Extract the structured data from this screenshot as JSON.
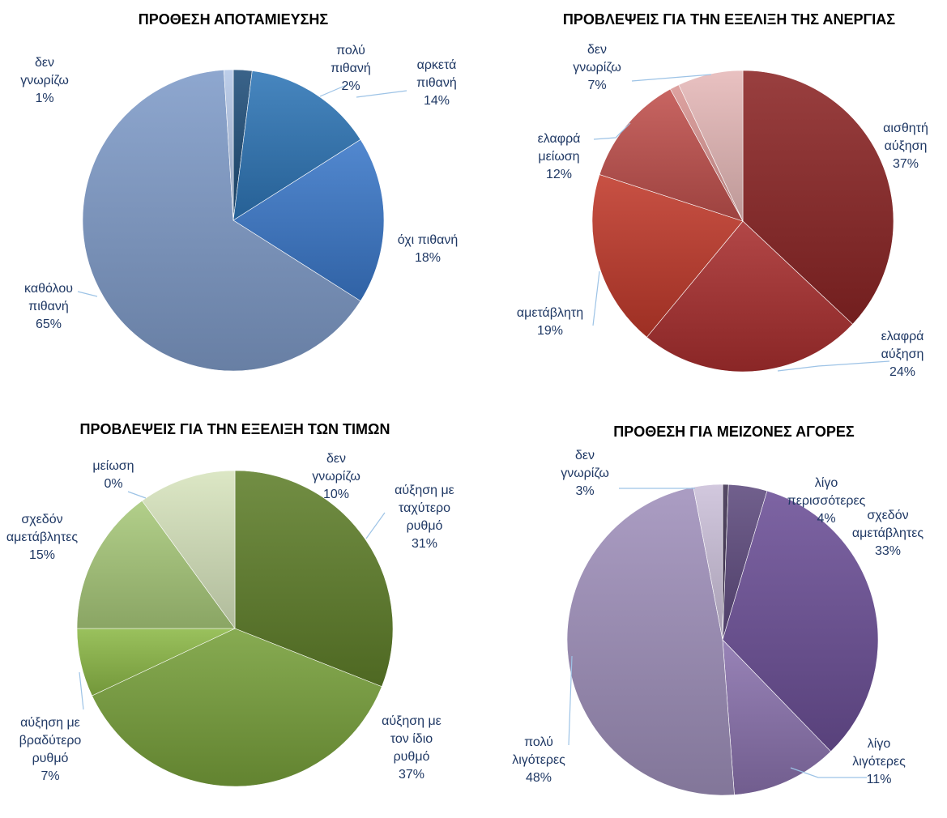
{
  "chart_data": [
    {
      "type": "pie",
      "title": "ΠΡΟΘΕΣΗ ΑΠΟΤΑΜΙΕΥΣΗΣ",
      "slices": [
        {
          "label": [
            "πολύ",
            "πιθανή"
          ],
          "value": 2,
          "value_text": "2%",
          "color": "#1f4e79"
        },
        {
          "label": [
            "αρκετά",
            "πιθανή"
          ],
          "value": 14,
          "value_text": "14%",
          "color": "#2e75b6"
        },
        {
          "label": [
            "όχι πιθανή"
          ],
          "value": 18,
          "value_text": "18%",
          "color": "#3a78c9"
        },
        {
          "label": [
            "καθόλου",
            "πιθανή"
          ],
          "value": 65,
          "value_text": "65%",
          "color": "#7f9bc8"
        },
        {
          "label": [
            "δεν",
            "γνωρίζω"
          ],
          "value": 1,
          "value_text": "1%",
          "color": "#b4c7e7"
        }
      ],
      "leader_color": "#9dc3e6"
    },
    {
      "type": "pie",
      "title": "ΠΡΟΒΛΕΨΕΙΣ ΓΙΑ ΤΗΝ ΕΞΕΛΙΞΗ ΤΗΣ ΑΝΕΡΓΙΑΣ",
      "slices": [
        {
          "label": [
            "αισθητή",
            "αύξηση"
          ],
          "value": 37,
          "value_text": "37%",
          "color": "#8b2525"
        },
        {
          "label": [
            "ελαφρά",
            "αύξηση"
          ],
          "value": 24,
          "value_text": "24%",
          "color": "#a82e2e"
        },
        {
          "label": [
            "αμετάβλητη"
          ],
          "value": 19,
          "value_text": "19%",
          "color": "#c0392b"
        },
        {
          "label": [
            "ελαφρά",
            "μείωση"
          ],
          "value": 12,
          "value_text": "12%",
          "color": "#c0504d"
        },
        {
          "label": [],
          "value": 1,
          "value_text": "",
          "color": "#d99694"
        },
        {
          "label": [
            "δεν",
            "γνωρίζω"
          ],
          "value": 7,
          "value_text": "7%",
          "color": "#e6b9b8"
        }
      ],
      "leader_color": "#9dc3e6"
    },
    {
      "type": "pie",
      "title": "ΠΡΟΒΛΕΨΕΙΣ ΓΙΑ ΤΗΝ ΕΞΕΛΙΞΗ ΤΩΝ ΤΙΜΩΝ",
      "slices": [
        {
          "label": [
            "αύξηση με",
            "ταχύτερο",
            "ρυθμό"
          ],
          "value": 31,
          "value_text": "31%",
          "color": "#5f7f2a"
        },
        {
          "label": [
            "αύξηση με",
            "τον ίδιο",
            "ρυθμό"
          ],
          "value": 37,
          "value_text": "37%",
          "color": "#77a03a"
        },
        {
          "label": [
            "αύξηση με",
            "βραδύτερο",
            "ρυθμό"
          ],
          "value": 7,
          "value_text": "7%",
          "color": "#8cb847"
        },
        {
          "label": [
            "σχεδόν",
            "αμετάβλητες"
          ],
          "value": 15,
          "value_text": "15%",
          "color": "#a8c97a"
        },
        {
          "label": [
            "μείωση"
          ],
          "value": 0,
          "value_text": "0%",
          "color": "#c4d79b"
        },
        {
          "label": [
            "δεν",
            "γνωρίζω"
          ],
          "value": 10,
          "value_text": "10%",
          "color": "#d7e4bd"
        }
      ],
      "leader_color": "#9dc3e6"
    },
    {
      "type": "pie",
      "title": "ΠΡΟΘΕΣΗ ΓΙΑ ΜΕΙΖΟΝΕΣ ΑΓΟΡΕΣ",
      "slices": [
        {
          "label": [],
          "value": 0.6,
          "value_text": "",
          "color": "#3f3151"
        },
        {
          "label": [
            "λίγο",
            "περισσότερες"
          ],
          "value": 4,
          "value_text": "4%",
          "color": "#5e4a7e"
        },
        {
          "label": [
            "σχεδόν",
            "αμετάβλητες"
          ],
          "value": 33,
          "value_text": "33%",
          "color": "#6b4f96"
        },
        {
          "label": [
            "λίγο",
            "λιγότερες"
          ],
          "value": 11,
          "value_text": "11%",
          "color": "#8a72ad"
        },
        {
          "label": [
            "πολύ",
            "λιγότερες"
          ],
          "value": 48,
          "value_text": "48%",
          "color": "#9f90bb"
        },
        {
          "label": [
            "δεν",
            "γνωρίζω"
          ],
          "value": 3,
          "value_text": "3%",
          "color": "#ccc1da"
        }
      ],
      "leader_color": "#9dc3e6"
    }
  ]
}
